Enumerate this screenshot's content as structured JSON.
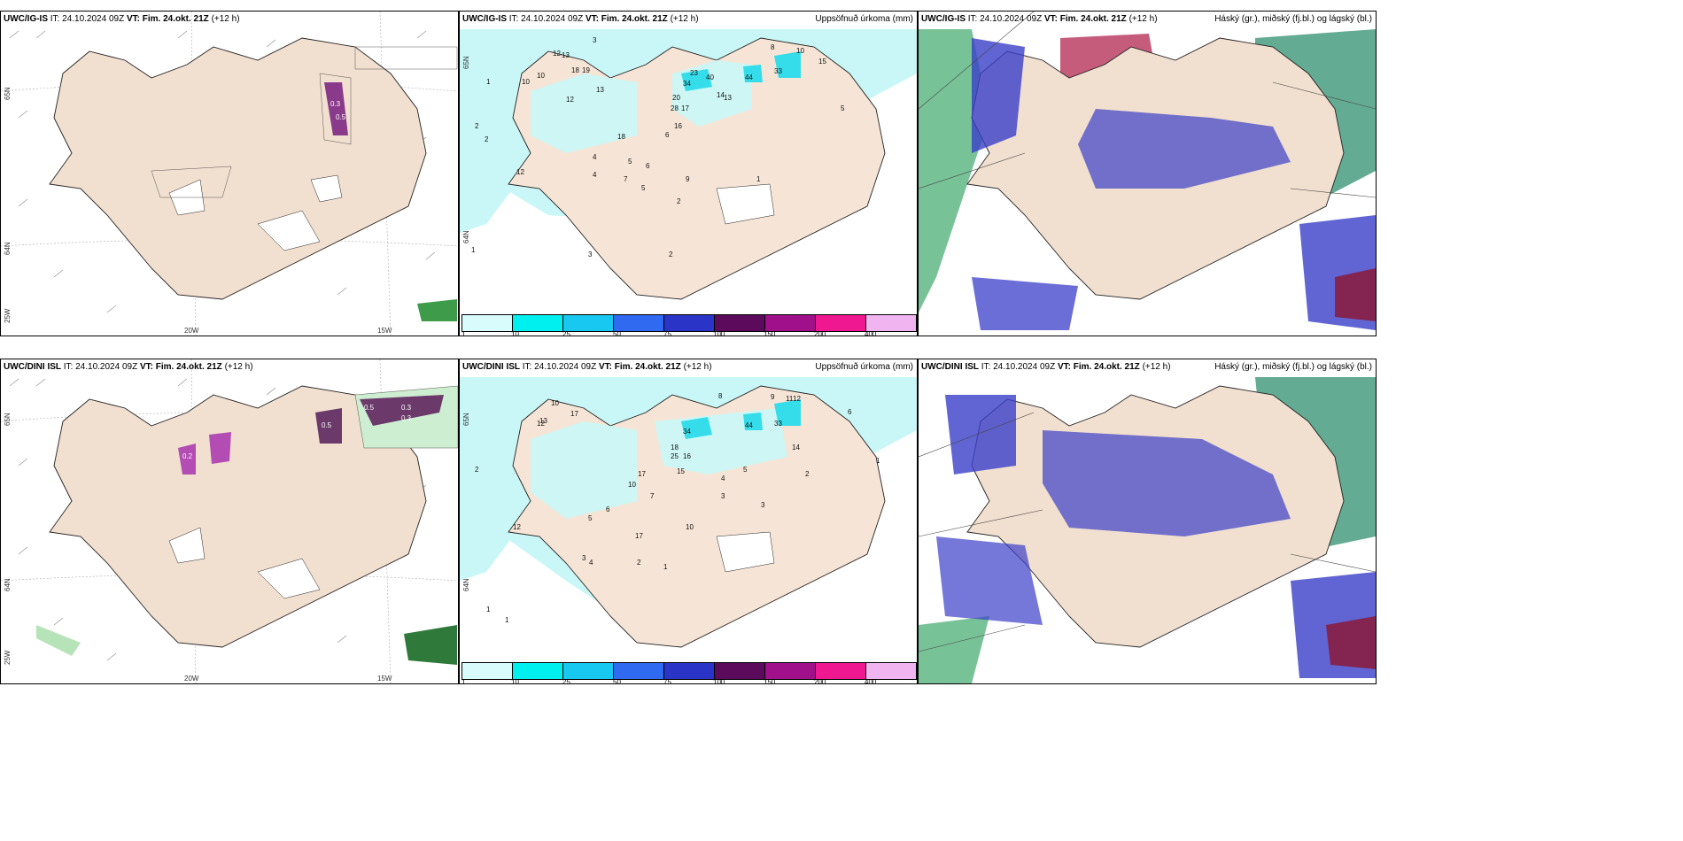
{
  "rows": [
    {
      "id": "ig",
      "model": "UWC/IG-IS",
      "it_label": "IT:",
      "it": "24.10.2024 09Z",
      "vt_label": "VT:",
      "vt": "Fim. 24.okt. 21Z",
      "lead": "(+12 h)"
    },
    {
      "id": "dini",
      "model": "UWC/DINI ISL",
      "it_label": "IT:",
      "it": "24.10.2024 09Z",
      "vt_label": "VT:",
      "vt": "Fim. 24.okt. 21Z",
      "lead": "(+12 h)"
    }
  ],
  "precip_title": "Uppsöfnuð úrkoma (mm)",
  "cloud_title": "Háský (gr.), miðský (fj.bl.) og lágský (bl.)",
  "colorbar": {
    "ticks": [
      "1",
      "10",
      "25",
      "50",
      "75",
      "100",
      "150",
      "200",
      "400"
    ],
    "colors": [
      "#d8fbfb",
      "#00f0f0",
      "#18c8f0",
      "#2f6af0",
      "#2a35c8",
      "#5c0a5c",
      "#a0108a",
      "#f01890",
      "#f0b4f0"
    ]
  },
  "axis": {
    "lat_top": "65N",
    "lat_bottom": "64N",
    "lon_left": "25W",
    "lon_mid": "20W",
    "lon_right": "15W"
  },
  "precip_values_top": [
    "3",
    "12",
    "13",
    "10",
    "10",
    "18",
    "19",
    "13",
    "34",
    "23",
    "40",
    "44",
    "33",
    "8",
    "10",
    "15",
    "28",
    "20",
    "17",
    "14",
    "13",
    "16",
    "18",
    "6",
    "9",
    "5",
    "4",
    "2",
    "1",
    "12",
    "2",
    "4",
    "5",
    "6",
    "7",
    "3",
    "12",
    "2",
    "1",
    "1",
    "2",
    "5"
  ],
  "precip_values_bottom": [
    "8",
    "11",
    "12",
    "9",
    "13",
    "17",
    "10",
    "34",
    "44",
    "33",
    "12",
    "14",
    "18",
    "25",
    "16",
    "17",
    "10",
    "15",
    "10",
    "7",
    "6",
    "5",
    "4",
    "3",
    "2",
    "1",
    "12",
    "17",
    "2",
    "1",
    "3",
    "5",
    "4",
    "3",
    "2",
    "1",
    "6",
    "1"
  ],
  "wind_values_top": [
    "0.3",
    "0.5"
  ],
  "wind_values_bottom": [
    "0.5",
    "0.3",
    "0.3",
    "0.5",
    "0.2"
  ]
}
